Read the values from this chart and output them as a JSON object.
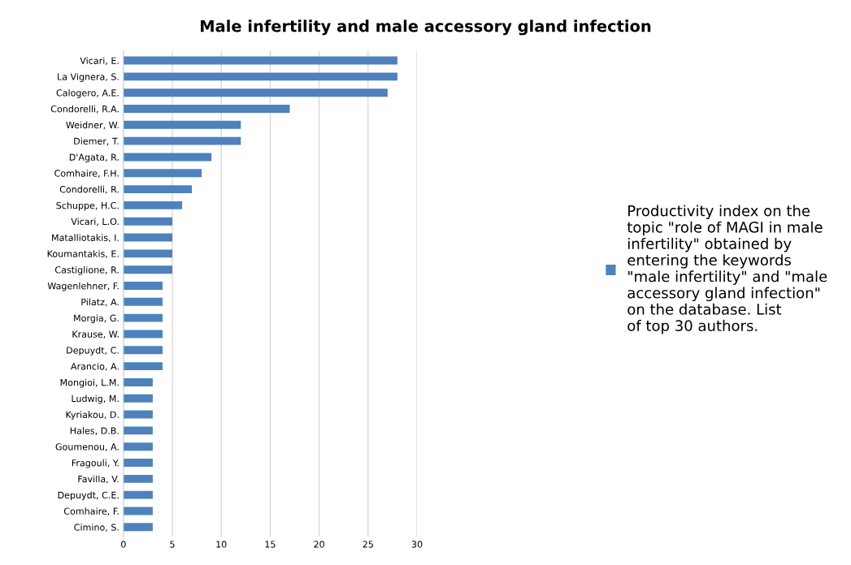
{
  "chart_data": {
    "type": "bar",
    "orientation": "horizontal",
    "title": "Male infertility and male accessory gland infection",
    "categories": [
      "Vicari, E.",
      "La Vignera, S.",
      "Calogero, A.E.",
      "Condorelli, R.A.",
      "Weidner, W.",
      "Diemer, T.",
      "D'Agata, R.",
      "Comhaire, F.H.",
      "Condorelli, R.",
      "Schuppe, H.C.",
      "Vicari, L.O.",
      "Matalliotakis, I.",
      "Koumantakis, E.",
      "Castiglione, R.",
      "Wagenlehner, F.",
      "Pilatz, A.",
      "Morgia, G.",
      "Krause, W.",
      "Depuydt, C.",
      "Arancio, A.",
      "Mongioi, L.M.",
      "Ludwig, M.",
      "Kyriakou, D.",
      "Hales, D.B.",
      "Goumenou, A.",
      "Fragouli, Y.",
      "Favilla, V.",
      "Depuydt, C.E.",
      "Comhaire, F.",
      "Cimino, S."
    ],
    "series": [
      {
        "name": "Productivity index on the\ntopic \"role of MAGI in male\ninfertility\" obtained by\nentering the keywords\n\"male infertility\" and \"male\naccessory gland infection\"\non the database. List\nof top 30 authors.",
        "color": "#4f81bd",
        "values": [
          28,
          28,
          27,
          17,
          12,
          12,
          9,
          8,
          7,
          6,
          5,
          5,
          5,
          5,
          4,
          4,
          4,
          4,
          4,
          4,
          3,
          3,
          3,
          3,
          3,
          3,
          3,
          3,
          3,
          3
        ]
      }
    ],
    "xlim": [
      0,
      30
    ],
    "xticks": [
      0,
      5,
      10,
      15,
      20,
      25,
      30
    ],
    "grid": "x",
    "legend": "right"
  }
}
